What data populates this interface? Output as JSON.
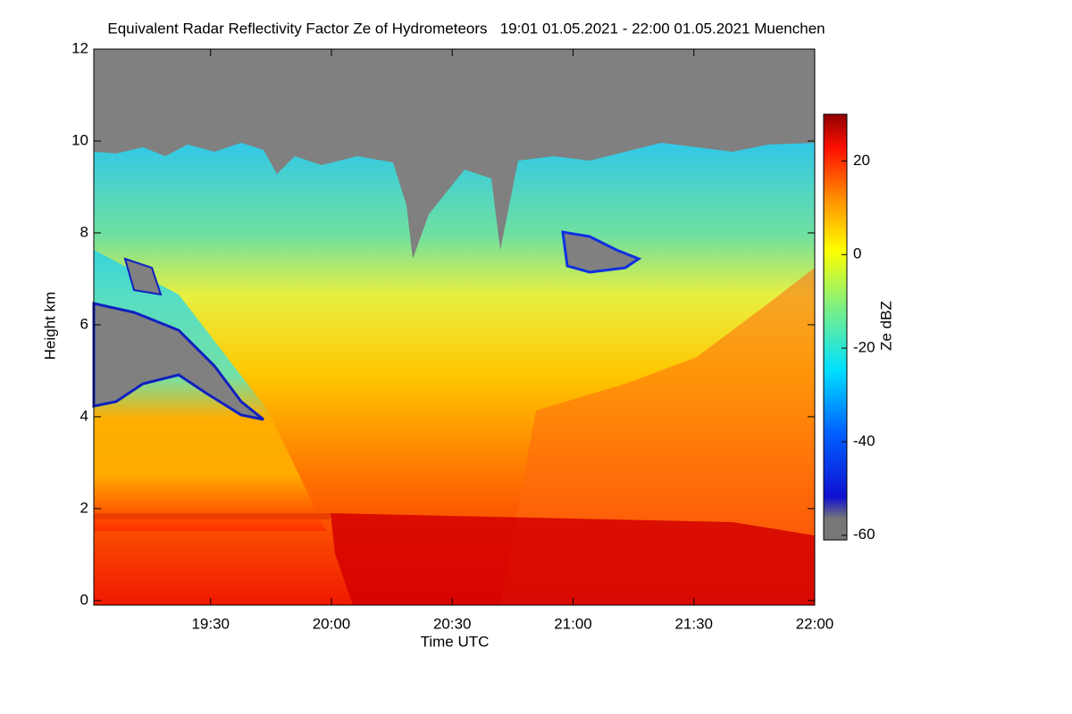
{
  "chart_data": {
    "type": "heatmap",
    "title": "Equivalent Radar Reflectivity Factor Ze of Hydrometeors   19:01 01.05.2021 - 22:00 01.05.2021 Muenchen",
    "xlabel": "Time UTC",
    "ylabel": "Height km",
    "xlim": [
      "19:01",
      "22:00"
    ],
    "xticks": [
      "19:30",
      "20:00",
      "20:30",
      "21:00",
      "21:30",
      "22:00"
    ],
    "ylim": [
      -0.1,
      12
    ],
    "yticks": [
      0,
      2,
      4,
      6,
      8,
      10,
      12
    ],
    "colorbar": {
      "label": "Ze dBZ",
      "lim": [
        -61,
        30
      ],
      "ticks": [
        -60,
        -40,
        -20,
        0,
        20
      ]
    }
  }
}
